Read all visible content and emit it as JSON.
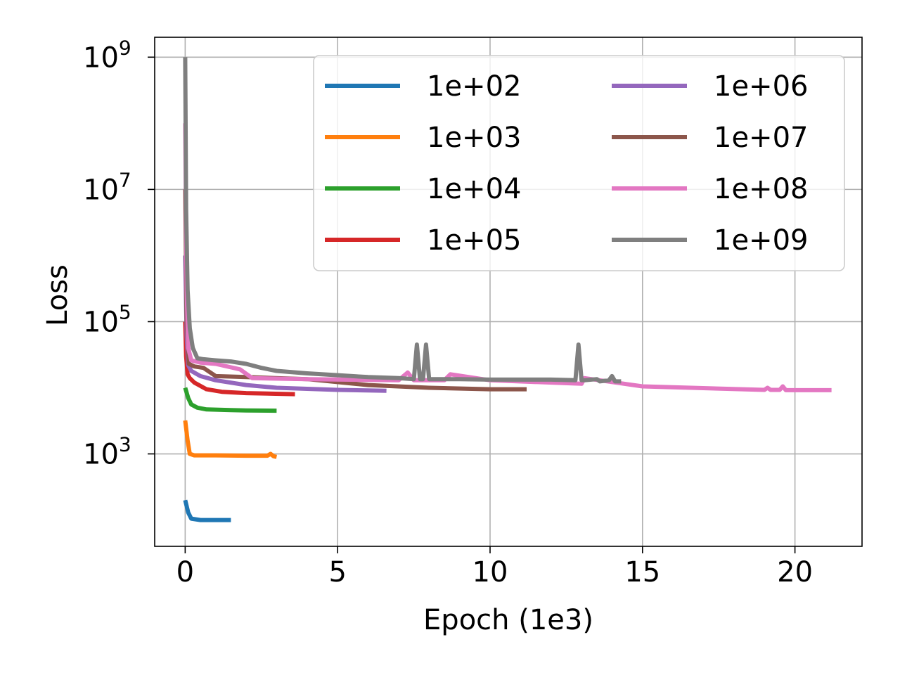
{
  "chart_data": {
    "type": "line",
    "title": "",
    "xlabel": "Epoch (1e3)",
    "ylabel": "Loss",
    "yscale": "log",
    "xlim": [
      -1,
      22.2
    ],
    "ylim": [
      40,
      2000000000
    ],
    "grid": true,
    "x_ticks": [
      0,
      5,
      10,
      15,
      20
    ],
    "x_tick_labels": [
      "0",
      "5",
      "10",
      "15",
      "20"
    ],
    "y_ticks": [
      1000,
      100000,
      10000000,
      1000000000
    ],
    "y_tick_labels": [
      {
        "base": "10",
        "exp": "3"
      },
      {
        "base": "10",
        "exp": "5"
      },
      {
        "base": "10",
        "exp": "7"
      },
      {
        "base": "10",
        "exp": "9"
      }
    ],
    "legend": {
      "placement": "top-right",
      "columns": 2
    },
    "series": [
      {
        "name": "1e+02",
        "color": "#1f77b4",
        "x": [
          0,
          0.1,
          0.2,
          0.5,
          1.0,
          1.5
        ],
        "y": [
          200,
          130,
          105,
          100,
          100,
          100
        ]
      },
      {
        "name": "1e+03",
        "color": "#ff7f0e",
        "x": [
          0,
          0.08,
          0.15,
          0.3,
          1.0,
          2.0,
          2.7,
          2.8,
          2.9,
          3.0
        ],
        "y": [
          3200,
          1600,
          1000,
          950,
          950,
          940,
          940,
          1000,
          920,
          900
        ]
      },
      {
        "name": "1e+04",
        "color": "#2ca02c",
        "x": [
          0,
          0.1,
          0.2,
          0.4,
          0.7,
          1.5,
          2.0,
          3.0
        ],
        "y": [
          10000,
          7000,
          5600,
          5000,
          4700,
          4600,
          4550,
          4500
        ]
      },
      {
        "name": "1e+05",
        "color": "#d62728",
        "x": [
          0,
          0.03,
          0.08,
          0.15,
          0.3,
          0.7,
          1.2,
          2.0,
          3.6
        ],
        "y": [
          100000,
          30000,
          16000,
          14000,
          12000,
          9500,
          8700,
          8300,
          8000
        ]
      },
      {
        "name": "1e+06",
        "color": "#9467bd",
        "x": [
          0,
          0.05,
          0.1,
          0.2,
          0.5,
          1.0,
          2.0,
          3.0,
          5.0,
          6.6
        ],
        "y": [
          1000000,
          60000,
          22000,
          18000,
          15000,
          13000,
          11000,
          10000,
          9300,
          9000
        ]
      },
      {
        "name": "1e+07",
        "color": "#8c564b",
        "x": [
          0,
          0.05,
          0.12,
          0.3,
          0.6,
          1.0,
          2.0,
          4.0,
          6.0,
          8.0,
          10.0,
          11.2
        ],
        "y": [
          10000000,
          100000,
          23000,
          21000,
          20000,
          15000,
          14500,
          13500,
          11000,
          10000,
          9500,
          9500
        ]
      },
      {
        "name": "1e+08",
        "color": "#e377c2",
        "x": [
          0,
          0.05,
          0.1,
          0.2,
          0.5,
          1.0,
          1.8,
          2.2,
          4.0,
          7.0,
          7.3,
          7.5,
          8.5,
          8.7,
          10.0,
          13.0,
          13.1,
          15.0,
          19.0,
          19.1,
          19.2,
          19.5,
          19.6,
          19.7,
          21.2
        ],
        "y": [
          100000000,
          300000,
          40000,
          26000,
          24000,
          23000,
          19000,
          14000,
          13500,
          13000,
          17000,
          13000,
          13000,
          16000,
          13000,
          11500,
          14000,
          10500,
          9300,
          10000,
          9300,
          9300,
          10500,
          9200,
          9200
        ]
      },
      {
        "name": "1e+09",
        "color": "#7f7f7f",
        "x": [
          0,
          0.03,
          0.08,
          0.15,
          0.25,
          0.4,
          0.6,
          1.0,
          1.5,
          2.0,
          2.5,
          3.0,
          4.0,
          5.0,
          6.0,
          7.0,
          7.5,
          7.6,
          7.7,
          7.8,
          7.9,
          8.0,
          8.1,
          9.0,
          10.0,
          11.0,
          12.0,
          12.8,
          12.9,
          13.0,
          13.1,
          13.5,
          13.6,
          13.9,
          14.0,
          14.1,
          14.3
        ],
        "y": [
          1000000000,
          5000000,
          300000,
          80000,
          40000,
          28000,
          27000,
          26000,
          25000,
          23000,
          20000,
          18000,
          16500,
          15500,
          14500,
          14000,
          13500,
          45000,
          13500,
          13500,
          45000,
          13500,
          13500,
          13500,
          13300,
          13300,
          13300,
          13000,
          45000,
          13000,
          13000,
          13500,
          12500,
          13000,
          15000,
          12500,
          12500
        ]
      }
    ]
  }
}
